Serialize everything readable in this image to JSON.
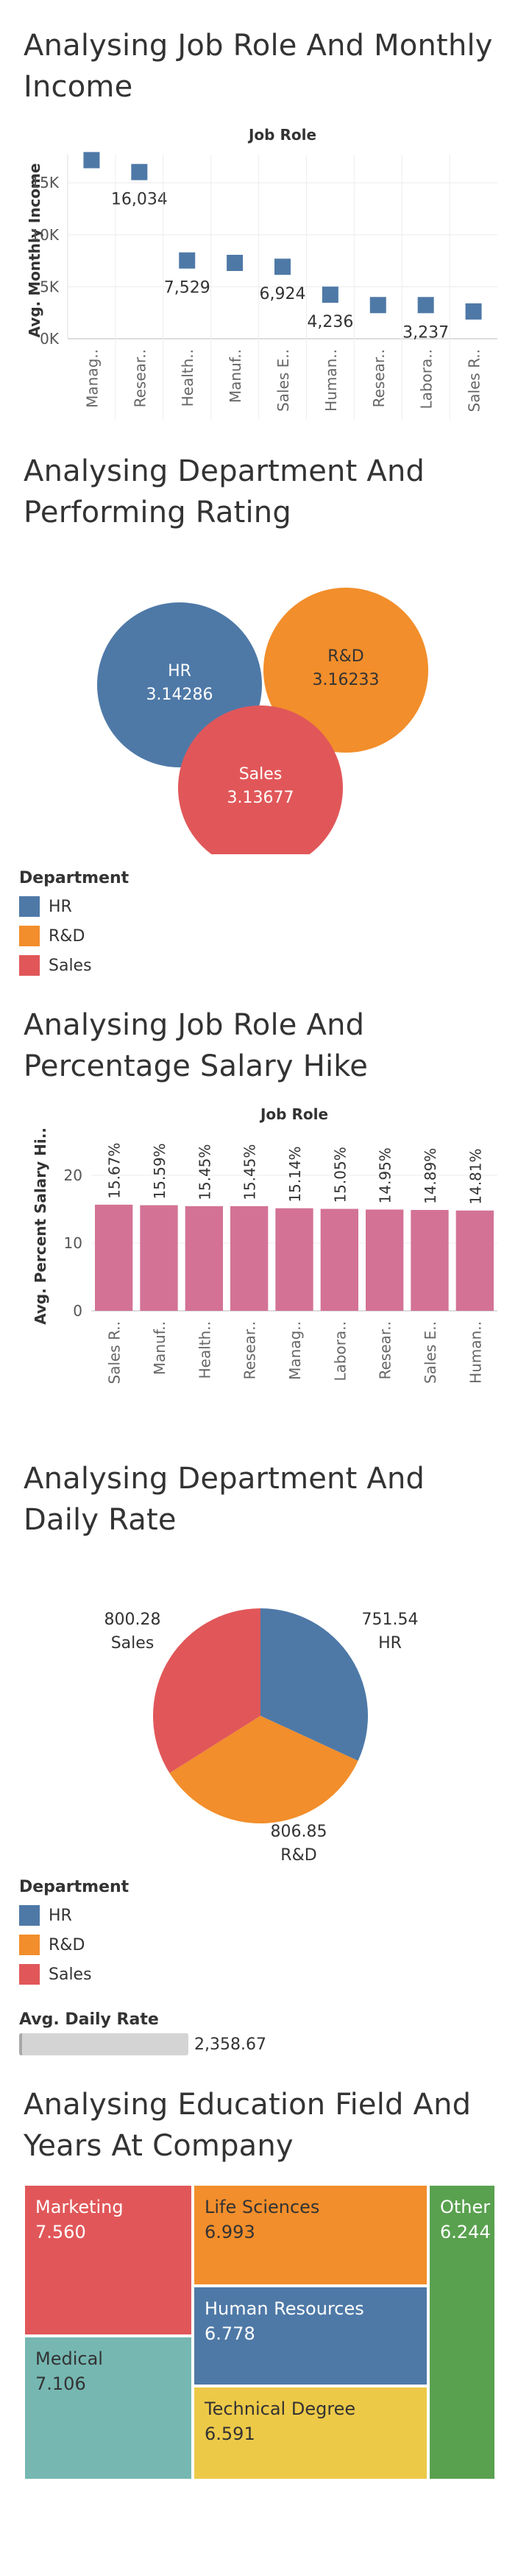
{
  "sections": {
    "s1_title": "Analysing Job Role And Monthly Income",
    "s2_title": "Analysing Department And Performing Rating",
    "s3_title": "Analysing Job Role And Percentage Salary Hike",
    "s4_title": "Analysing Department And Daily Rate",
    "s5_title": "Analysing Education Field And Years At Company"
  },
  "colors": {
    "hr": "#4e79a7",
    "rd": "#f28e2b",
    "sales": "#e15759",
    "bar": "#d37295",
    "teal": "#76b7b2",
    "yellow": "#edc948",
    "green": "#59a14f"
  },
  "chart_data": [
    {
      "id": "income",
      "type": "scatter",
      "title": "Job Role",
      "ylabel": "Avg. Monthly Income",
      "ylim": [
        0,
        17000
      ],
      "yticks": [
        "0K",
        "5K",
        "10K",
        "15K"
      ],
      "ytick_values": [
        0,
        5000,
        10000,
        15000
      ],
      "categories": [
        "Manag..",
        "Resear..",
        "Health..",
        "Manuf..",
        "Sales E..",
        "Human..",
        "Resear..",
        "Labora..",
        "Sales R.."
      ],
      "values": [
        17180,
        16034,
        7529,
        7295,
        6924,
        4236,
        3240,
        3237,
        2626
      ],
      "labels": [
        "",
        "16,034",
        "7,529",
        "",
        "6,924",
        "4,236",
        "",
        "3,237",
        ""
      ]
    },
    {
      "id": "perf",
      "type": "bubble",
      "items": [
        {
          "name": "HR",
          "value": "3.14286"
        },
        {
          "name": "R&D",
          "value": "3.16233"
        },
        {
          "name": "Sales",
          "value": "3.13677"
        }
      ],
      "legend_title": "Department",
      "legend": [
        "HR",
        "R&D",
        "Sales"
      ]
    },
    {
      "id": "hike",
      "type": "bar",
      "title": "Job Role",
      "ylabel": "Avg. Percent Salary Hi..",
      "ylim": [
        0,
        25
      ],
      "yticks": [
        "0",
        "10",
        "20"
      ],
      "ytick_values": [
        0,
        10,
        20
      ],
      "categories": [
        "Sales R..",
        "Manuf..",
        "Health..",
        "Resear..",
        "Manag..",
        "Labora..",
        "Resear..",
        "Sales E..",
        "Human.."
      ],
      "values": [
        15.67,
        15.59,
        15.45,
        15.45,
        15.14,
        15.05,
        14.95,
        14.89,
        14.81
      ],
      "labels": [
        "15.67%",
        "15.59%",
        "15.45%",
        "15.45%",
        "15.14%",
        "15.05%",
        "14.95%",
        "14.89%",
        "14.81%"
      ]
    },
    {
      "id": "daily",
      "type": "pie",
      "slices": [
        {
          "name": "HR",
          "value": 751.54,
          "label": "751.54"
        },
        {
          "name": "R&D",
          "value": 806.85,
          "label": "806.85"
        },
        {
          "name": "Sales",
          "value": 800.28,
          "label": "800.28"
        }
      ],
      "legend_title": "Department",
      "legend": [
        "HR",
        "R&D",
        "Sales"
      ],
      "size_legend_title": "Avg. Daily Rate",
      "size_legend_value": "2,358.67"
    },
    {
      "id": "edu",
      "type": "treemap",
      "items": [
        {
          "name": "Marketing",
          "value": "7.560"
        },
        {
          "name": "Life Sciences",
          "value": "6.993"
        },
        {
          "name": "Other",
          "value": "6.244"
        },
        {
          "name": "Human Resources",
          "value": "6.778"
        },
        {
          "name": "Medical",
          "value": "7.106"
        },
        {
          "name": "Technical Degree",
          "value": "6.591"
        }
      ]
    }
  ]
}
